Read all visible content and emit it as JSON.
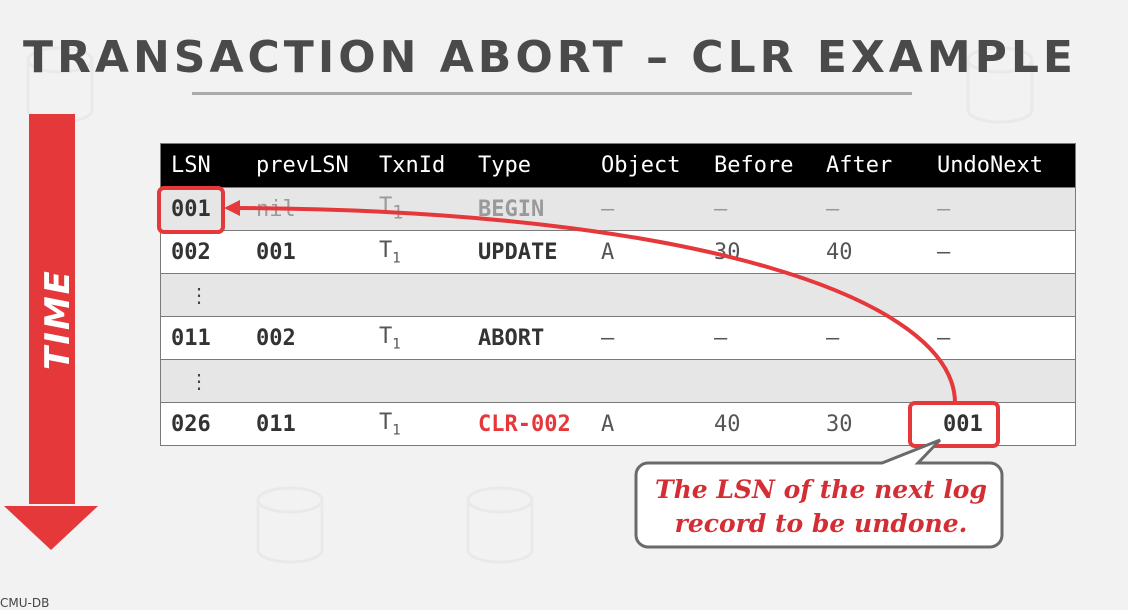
{
  "slide": {
    "title": "TRANSACTION ABORT – CLR EXAMPLE",
    "time_label": "TIME",
    "footer": "CMU-DB"
  },
  "table": {
    "columns": [
      "LSN",
      "prevLSN",
      "TxnId",
      "Type",
      "Object",
      "Before",
      "After",
      "UndoNext"
    ],
    "rows": [
      {
        "lsn": "001",
        "prev": "nil",
        "txn": "T",
        "txn_sub": "1",
        "type": "BEGIN",
        "object": "–",
        "before": "–",
        "after": "–",
        "undonext": "–"
      },
      {
        "lsn": "002",
        "prev": "001",
        "txn": "T",
        "txn_sub": "1",
        "type": "UPDATE",
        "object": "A",
        "before": "30",
        "after": "40",
        "undonext": "–"
      },
      {
        "dots": "⋮"
      },
      {
        "lsn": "011",
        "prev": "002",
        "txn": "T",
        "txn_sub": "1",
        "type": "ABORT",
        "object": "–",
        "before": "–",
        "after": "–",
        "undonext": "–"
      },
      {
        "dots": "⋮"
      },
      {
        "lsn": "026",
        "prev": "011",
        "txn": "T",
        "txn_sub": "1",
        "type": "CLR-002",
        "object": "A",
        "before": "40",
        "after": "30",
        "undonext": "001"
      }
    ]
  },
  "callout": {
    "line1": "The LSN of the next log",
    "line2": "record to be undone."
  },
  "colors": {
    "accent_red": "#e5383b",
    "header_bg": "#000000",
    "title_gray": "#4a4a4a"
  }
}
